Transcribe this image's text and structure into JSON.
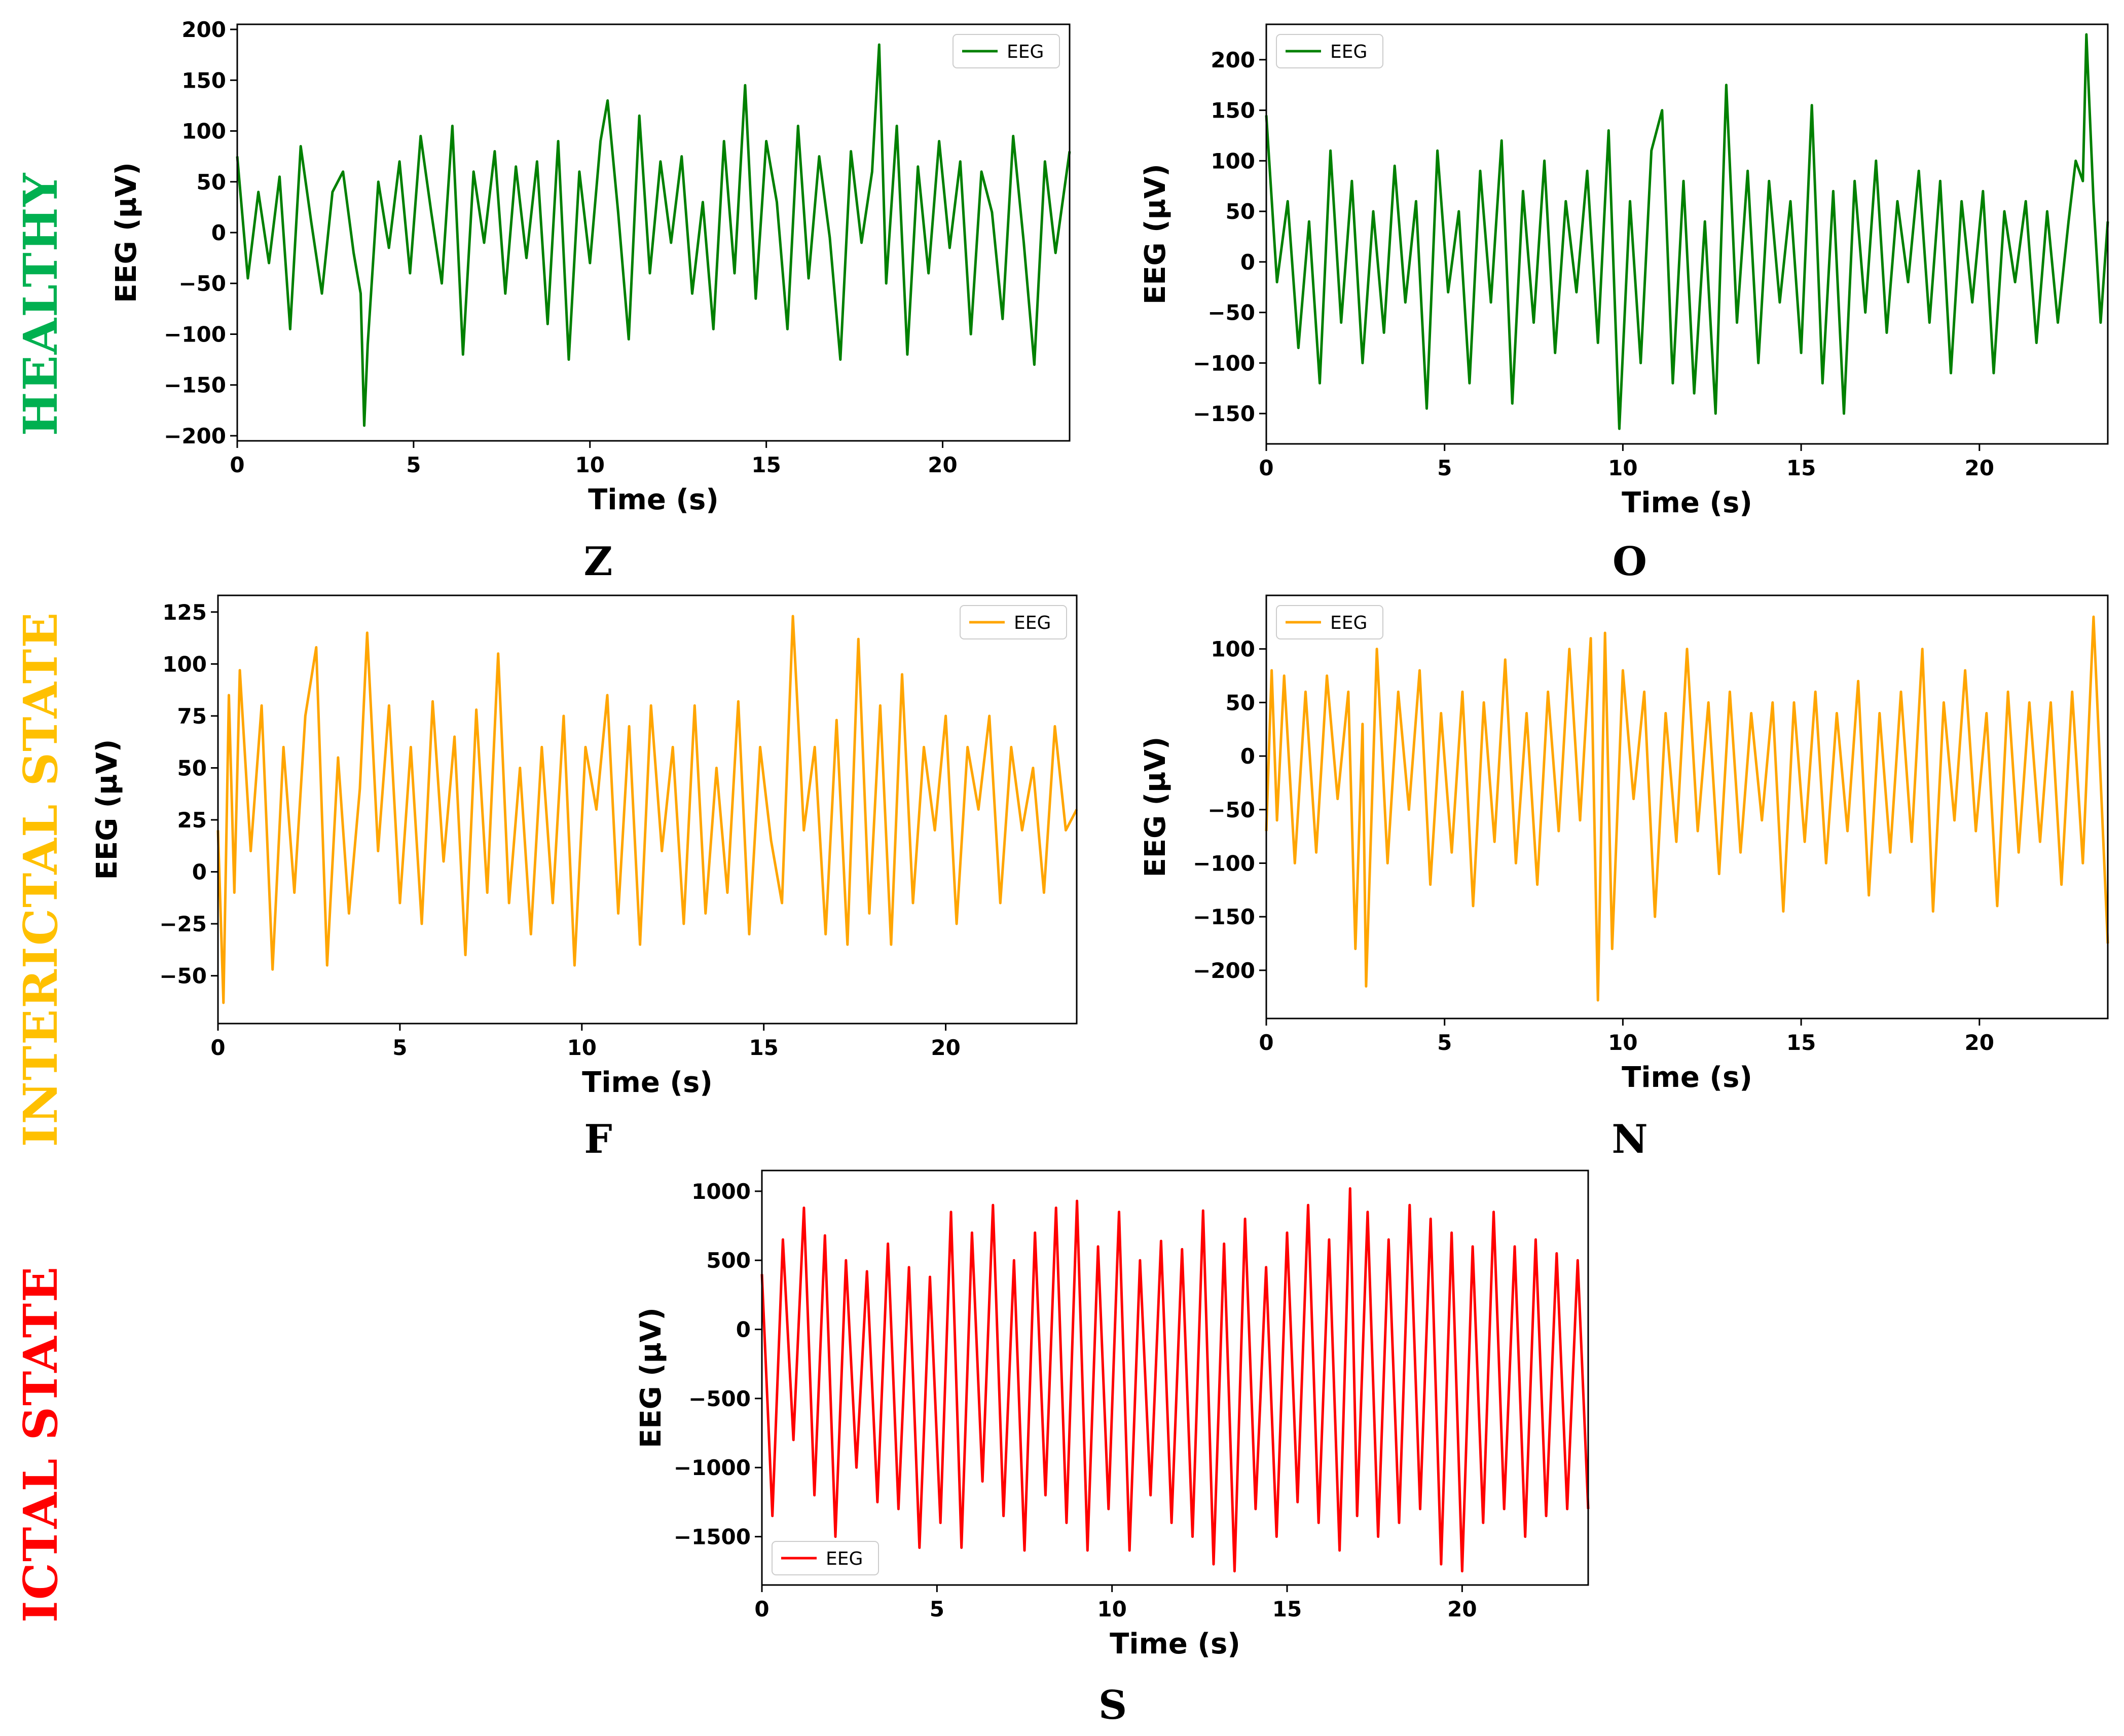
{
  "row_labels": [
    {
      "text": "HEALTHY",
      "color": "#00B050"
    },
    {
      "text": "INTERICTAL STATE",
      "color": "#FFC000"
    },
    {
      "text": "ICTAL STATE",
      "color": "#FF0000"
    }
  ],
  "chart_data": [
    {
      "type": "line",
      "panel": "Z",
      "title": "",
      "xlabel": "Time (s)",
      "ylabel": "EEG (µV)",
      "xlim": [
        0,
        23.6
      ],
      "ylim": [
        -205,
        205
      ],
      "xticks": [
        0,
        5,
        10,
        15,
        20
      ],
      "yticks": [
        -200,
        -150,
        -100,
        -50,
        0,
        50,
        100,
        150,
        200
      ],
      "ytick_labels": [
        "−200",
        "−150",
        "−100",
        "−50",
        "0",
        "50",
        "100",
        "150",
        "200"
      ],
      "legend": {
        "label": "EEG",
        "position": "upper right"
      },
      "series": [
        {
          "name": "EEG",
          "color": "#008000",
          "x": [
            0,
            0.3,
            0.6,
            0.9,
            1.2,
            1.5,
            1.8,
            2.1,
            2.4,
            2.7,
            3.0,
            3.3,
            3.5,
            3.6,
            3.7,
            4.0,
            4.3,
            4.6,
            4.9,
            5.2,
            5.5,
            5.8,
            6.1,
            6.4,
            6.7,
            7.0,
            7.3,
            7.6,
            7.9,
            8.2,
            8.5,
            8.8,
            9.1,
            9.4,
            9.7,
            10.0,
            10.3,
            10.5,
            10.8,
            11.1,
            11.4,
            11.7,
            12.0,
            12.3,
            12.6,
            12.9,
            13.2,
            13.5,
            13.8,
            14.1,
            14.4,
            14.7,
            15.0,
            15.3,
            15.6,
            15.9,
            16.2,
            16.5,
            16.8,
            17.1,
            17.4,
            17.7,
            18.0,
            18.2,
            18.4,
            18.7,
            19.0,
            19.3,
            19.6,
            19.9,
            20.2,
            20.5,
            20.8,
            21.1,
            21.4,
            21.7,
            22.0,
            22.3,
            22.6,
            22.9,
            23.2,
            23.6
          ],
          "values": [
            75,
            -45,
            40,
            -30,
            55,
            -95,
            85,
            10,
            -60,
            40,
            60,
            -20,
            -60,
            -190,
            -110,
            50,
            -15,
            70,
            -40,
            95,
            20,
            -50,
            105,
            -120,
            60,
            -10,
            80,
            -60,
            65,
            -25,
            70,
            -90,
            90,
            -125,
            60,
            -30,
            90,
            130,
            20,
            -105,
            115,
            -40,
            70,
            -10,
            75,
            -60,
            30,
            -95,
            90,
            -40,
            145,
            -65,
            90,
            30,
            -95,
            105,
            -45,
            75,
            -5,
            -125,
            80,
            -10,
            60,
            185,
            -50,
            105,
            -120,
            65,
            -40,
            90,
            -15,
            70,
            -100,
            60,
            20,
            -85,
            95,
            -10,
            -130,
            70,
            -20,
            80
          ]
        }
      ]
    },
    {
      "type": "line",
      "panel": "O",
      "title": "",
      "xlabel": "Time (s)",
      "ylabel": "EEG (µV)",
      "xlim": [
        0,
        23.6
      ],
      "ylim": [
        -180,
        235
      ],
      "xticks": [
        0,
        5,
        10,
        15,
        20
      ],
      "yticks": [
        -150,
        -100,
        -50,
        0,
        50,
        100,
        150,
        200
      ],
      "ytick_labels": [
        "−150",
        "−100",
        "−50",
        "0",
        "50",
        "100",
        "150",
        "200"
      ],
      "legend": {
        "label": "EEG",
        "position": "upper left"
      },
      "series": [
        {
          "name": "EEG",
          "color": "#008000",
          "x": [
            0,
            0.3,
            0.6,
            0.9,
            1.2,
            1.5,
            1.8,
            2.1,
            2.4,
            2.7,
            3.0,
            3.3,
            3.6,
            3.9,
            4.2,
            4.5,
            4.8,
            5.1,
            5.4,
            5.7,
            6.0,
            6.3,
            6.6,
            6.9,
            7.2,
            7.5,
            7.8,
            8.1,
            8.4,
            8.7,
            9.0,
            9.3,
            9.6,
            9.9,
            10.2,
            10.5,
            10.8,
            11.1,
            11.4,
            11.7,
            12.0,
            12.3,
            12.6,
            12.9,
            13.2,
            13.5,
            13.8,
            14.1,
            14.4,
            14.7,
            15.0,
            15.3,
            15.6,
            15.9,
            16.2,
            16.5,
            16.8,
            17.1,
            17.4,
            17.7,
            18.0,
            18.3,
            18.6,
            18.9,
            19.2,
            19.5,
            19.8,
            20.1,
            20.4,
            20.7,
            21.0,
            21.3,
            21.6,
            21.9,
            22.2,
            22.5,
            22.7,
            22.9,
            23.0,
            23.2,
            23.4,
            23.6
          ],
          "values": [
            145,
            -20,
            60,
            -85,
            40,
            -120,
            110,
            -60,
            80,
            -100,
            50,
            -70,
            95,
            -40,
            60,
            -145,
            110,
            -30,
            50,
            -120,
            90,
            -40,
            120,
            -140,
            70,
            -60,
            100,
            -90,
            60,
            -30,
            90,
            -80,
            130,
            -165,
            60,
            -100,
            110,
            150,
            -120,
            80,
            -130,
            40,
            -150,
            175,
            -60,
            90,
            -100,
            80,
            -40,
            60,
            -90,
            155,
            -120,
            70,
            -150,
            80,
            -50,
            100,
            -70,
            60,
            -20,
            90,
            -60,
            80,
            -110,
            60,
            -40,
            70,
            -110,
            50,
            -20,
            60,
            -80,
            50,
            -60,
            40,
            100,
            80,
            225,
            60,
            -60,
            40
          ]
        }
      ]
    },
    {
      "type": "line",
      "panel": "F",
      "title": "",
      "xlabel": "Time (s)",
      "ylabel": "EEG (µV)",
      "xlim": [
        0,
        23.6
      ],
      "ylim": [
        -73,
        133
      ],
      "xticks": [
        0,
        5,
        10,
        15,
        20
      ],
      "yticks": [
        -50,
        -25,
        0,
        25,
        50,
        75,
        100,
        125
      ],
      "ytick_labels": [
        "−50",
        "−25",
        "0",
        "25",
        "50",
        "75",
        "100",
        "125"
      ],
      "legend": {
        "label": "EEG",
        "position": "upper right"
      },
      "series": [
        {
          "name": "EEG",
          "color": "#FFA500",
          "x": [
            0,
            0.15,
            0.3,
            0.45,
            0.6,
            0.9,
            1.2,
            1.5,
            1.8,
            2.1,
            2.4,
            2.7,
            3.0,
            3.3,
            3.6,
            3.9,
            4.1,
            4.4,
            4.7,
            5.0,
            5.3,
            5.6,
            5.9,
            6.2,
            6.5,
            6.8,
            7.1,
            7.4,
            7.7,
            8.0,
            8.3,
            8.6,
            8.9,
            9.2,
            9.5,
            9.8,
            10.1,
            10.4,
            10.7,
            11.0,
            11.3,
            11.6,
            11.9,
            12.2,
            12.5,
            12.8,
            13.1,
            13.4,
            13.7,
            14.0,
            14.3,
            14.6,
            14.9,
            15.2,
            15.5,
            15.8,
            16.1,
            16.4,
            16.7,
            17.0,
            17.3,
            17.6,
            17.9,
            18.2,
            18.5,
            18.8,
            19.1,
            19.4,
            19.7,
            20.0,
            20.3,
            20.6,
            20.9,
            21.2,
            21.5,
            21.8,
            22.1,
            22.4,
            22.7,
            23.0,
            23.3,
            23.6
          ],
          "values": [
            20,
            -63,
            85,
            -10,
            97,
            10,
            80,
            -47,
            60,
            -10,
            75,
            108,
            -45,
            55,
            -20,
            40,
            115,
            10,
            80,
            -15,
            60,
            -25,
            82,
            5,
            65,
            -40,
            78,
            -10,
            105,
            -15,
            50,
            -30,
            60,
            -15,
            75,
            -45,
            60,
            30,
            85,
            -20,
            70,
            -35,
            80,
            10,
            60,
            -25,
            80,
            -20,
            50,
            -10,
            82,
            -30,
            60,
            15,
            -15,
            123,
            20,
            60,
            -30,
            73,
            -35,
            112,
            -20,
            80,
            -35,
            95,
            -15,
            60,
            20,
            75,
            -25,
            60,
            30,
            75,
            -15,
            60,
            20,
            50,
            -10,
            70,
            20,
            30
          ]
        }
      ]
    },
    {
      "type": "line",
      "panel": "N",
      "title": "",
      "xlabel": "Time (s)",
      "ylabel": "EEG (µV)",
      "xlim": [
        0,
        23.6
      ],
      "ylim": [
        -245,
        150
      ],
      "xticks": [
        0,
        5,
        10,
        15,
        20
      ],
      "yticks": [
        -200,
        -150,
        -100,
        -50,
        0,
        50,
        100
      ],
      "ytick_labels": [
        "−200",
        "−150",
        "−100",
        "−50",
        "0",
        "50",
        "100"
      ],
      "legend": {
        "label": "EEG",
        "position": "upper left"
      },
      "series": [
        {
          "name": "EEG",
          "color": "#FFA500",
          "x": [
            0,
            0.15,
            0.3,
            0.5,
            0.8,
            1.1,
            1.4,
            1.7,
            2.0,
            2.3,
            2.5,
            2.7,
            2.8,
            3.1,
            3.4,
            3.7,
            4.0,
            4.3,
            4.6,
            4.9,
            5.2,
            5.5,
            5.8,
            6.1,
            6.4,
            6.7,
            7.0,
            7.3,
            7.6,
            7.9,
            8.2,
            8.5,
            8.8,
            9.1,
            9.3,
            9.5,
            9.7,
            10.0,
            10.3,
            10.6,
            10.9,
            11.2,
            11.5,
            11.8,
            12.1,
            12.4,
            12.7,
            13.0,
            13.3,
            13.6,
            13.9,
            14.2,
            14.5,
            14.8,
            15.1,
            15.4,
            15.7,
            16.0,
            16.3,
            16.6,
            16.9,
            17.2,
            17.5,
            17.8,
            18.1,
            18.4,
            18.7,
            19.0,
            19.3,
            19.6,
            19.9,
            20.2,
            20.5,
            20.8,
            21.1,
            21.4,
            21.7,
            22.0,
            22.3,
            22.6,
            22.9,
            23.2,
            23.6
          ],
          "values": [
            -70,
            80,
            -60,
            75,
            -100,
            60,
            -90,
            75,
            -40,
            60,
            -180,
            30,
            -215,
            100,
            -100,
            60,
            -50,
            80,
            -120,
            40,
            -90,
            60,
            -140,
            50,
            -80,
            90,
            -100,
            40,
            -120,
            60,
            -70,
            100,
            -60,
            110,
            -228,
            115,
            -180,
            80,
            -40,
            60,
            -150,
            40,
            -80,
            100,
            -70,
            50,
            -110,
            60,
            -90,
            40,
            -60,
            50,
            -145,
            50,
            -80,
            60,
            -100,
            40,
            -70,
            70,
            -130,
            40,
            -90,
            60,
            -80,
            100,
            -145,
            50,
            -60,
            80,
            -70,
            40,
            -140,
            60,
            -90,
            50,
            -80,
            50,
            -120,
            60,
            -100,
            130,
            -175
          ]
        }
      ]
    },
    {
      "type": "line",
      "panel": "S",
      "title": "",
      "xlabel": "Time (s)",
      "ylabel": "EEG (µV)",
      "xlim": [
        0,
        23.6
      ],
      "ylim": [
        -1850,
        1150
      ],
      "xticks": [
        0,
        5,
        10,
        15,
        20
      ],
      "yticks": [
        -1500,
        -1000,
        -500,
        0,
        500,
        1000
      ],
      "ytick_labels": [
        "−1500",
        "−1000",
        "−500",
        "0",
        "500",
        "1000"
      ],
      "legend": {
        "label": "EEG",
        "position": "lower left"
      },
      "series": [
        {
          "name": "EEG",
          "color": "#FF0000",
          "x": [
            0,
            0.3,
            0.6,
            0.9,
            1.2,
            1.5,
            1.8,
            2.1,
            2.4,
            2.7,
            3.0,
            3.3,
            3.6,
            3.9,
            4.2,
            4.5,
            4.8,
            5.1,
            5.4,
            5.7,
            6.0,
            6.3,
            6.6,
            6.9,
            7.2,
            7.5,
            7.8,
            8.1,
            8.4,
            8.7,
            9.0,
            9.3,
            9.6,
            9.9,
            10.2,
            10.5,
            10.8,
            11.1,
            11.4,
            11.7,
            12.0,
            12.3,
            12.6,
            12.9,
            13.2,
            13.5,
            13.8,
            14.1,
            14.4,
            14.7,
            15.0,
            15.3,
            15.6,
            15.9,
            16.2,
            16.5,
            16.8,
            17.0,
            17.3,
            17.6,
            17.9,
            18.2,
            18.5,
            18.8,
            19.1,
            19.4,
            19.7,
            20.0,
            20.3,
            20.6,
            20.9,
            21.2,
            21.5,
            21.8,
            22.1,
            22.4,
            22.7,
            23.0,
            23.3,
            23.6
          ],
          "values": [
            400,
            -1350,
            650,
            -800,
            880,
            -1200,
            680,
            -1500,
            500,
            -1000,
            420,
            -1250,
            620,
            -1300,
            450,
            -1580,
            380,
            -1400,
            850,
            -1580,
            700,
            -1100,
            900,
            -1350,
            500,
            -1600,
            700,
            -1200,
            880,
            -1400,
            930,
            -1600,
            600,
            -1300,
            850,
            -1600,
            500,
            -1200,
            640,
            -1400,
            580,
            -1500,
            860,
            -1700,
            620,
            -1750,
            800,
            -1300,
            450,
            -1500,
            700,
            -1250,
            900,
            -1400,
            650,
            -1600,
            1020,
            -1350,
            850,
            -1500,
            650,
            -1400,
            900,
            -1300,
            800,
            -1700,
            700,
            -1750,
            600,
            -1400,
            850,
            -1300,
            600,
            -1500,
            650,
            -1350,
            550,
            -1300,
            500,
            -1300
          ]
        }
      ]
    }
  ]
}
